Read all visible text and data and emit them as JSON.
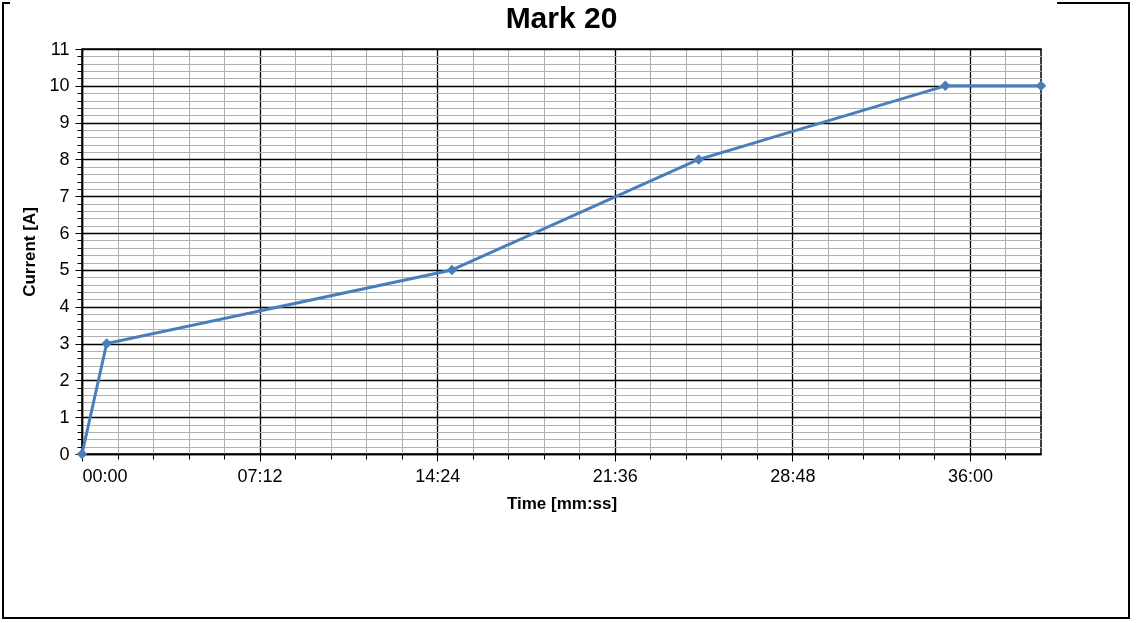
{
  "chart_data": {
    "type": "line",
    "title": "Mark 20",
    "xlabel": "Time [mm:ss]",
    "ylabel": "Current [A]",
    "x": [
      0,
      1,
      15,
      25,
      35,
      38.88
    ],
    "series": [
      {
        "color": "#4a7ebb",
        "values": [
          0,
          3,
          5,
          8,
          10,
          10
        ]
      }
    ],
    "xlim": [
      0,
      38.88
    ],
    "xticks": [
      {
        "value": 0,
        "label": "00:00"
      },
      {
        "value": 1.44,
        "label": null
      },
      {
        "value": 2.88,
        "label": null
      },
      {
        "value": 4.32,
        "label": null
      },
      {
        "value": 5.76,
        "label": null
      },
      {
        "value": 7.2,
        "label": "07:12"
      },
      {
        "value": 8.64,
        "label": null
      },
      {
        "value": 10.08,
        "label": null
      },
      {
        "value": 11.52,
        "label": null
      },
      {
        "value": 12.96,
        "label": null
      },
      {
        "value": 14.4,
        "label": "14:24"
      },
      {
        "value": 15.84,
        "label": null
      },
      {
        "value": 17.28,
        "label": null
      },
      {
        "value": 18.72,
        "label": null
      },
      {
        "value": 20.16,
        "label": null
      },
      {
        "value": 21.6,
        "label": "21:36"
      },
      {
        "value": 23.04,
        "label": null
      },
      {
        "value": 24.48,
        "label": null
      },
      {
        "value": 25.92,
        "label": null
      },
      {
        "value": 27.36,
        "label": null
      },
      {
        "value": 28.8,
        "label": "28:48"
      },
      {
        "value": 30.24,
        "label": null
      },
      {
        "value": 31.68,
        "label": null
      },
      {
        "value": 33.12,
        "label": null
      },
      {
        "value": 34.56,
        "label": null
      },
      {
        "value": 36,
        "label": "36:00"
      },
      {
        "value": 37.44,
        "label": null
      }
    ],
    "ylim": [
      0,
      11
    ],
    "yticks": [
      0,
      {
        "value": 0.2,
        "label": null
      },
      {
        "value": 0.4,
        "label": null
      },
      {
        "value": 0.6,
        "label": null
      },
      {
        "value": 0.8,
        "label": null
      },
      1,
      {
        "value": 1.2,
        "label": null
      },
      {
        "value": 1.4,
        "label": null
      },
      {
        "value": 1.6,
        "label": null
      },
      {
        "value": 1.8,
        "label": null
      },
      2,
      {
        "value": 2.2,
        "label": null
      },
      {
        "value": 2.4,
        "label": null
      },
      {
        "value": 2.6,
        "label": null
      },
      {
        "value": 2.8,
        "label": null
      },
      3,
      {
        "value": 3.2,
        "label": null
      },
      {
        "value": 3.4,
        "label": null
      },
      {
        "value": 3.6,
        "label": null
      },
      {
        "value": 3.8,
        "label": null
      },
      4,
      {
        "value": 4.2,
        "label": null
      },
      {
        "value": 4.4,
        "label": null
      },
      {
        "value": 4.6,
        "label": null
      },
      {
        "value": 4.8,
        "label": null
      },
      5,
      {
        "value": 5.2,
        "label": null
      },
      {
        "value": 5.4,
        "label": null
      },
      {
        "value": 5.6,
        "label": null
      },
      {
        "value": 5.8,
        "label": null
      },
      6,
      {
        "value": 6.2,
        "label": null
      },
      {
        "value": 6.4,
        "label": null
      },
      {
        "value": 6.6,
        "label": null
      },
      {
        "value": 6.8,
        "label": null
      },
      7,
      {
        "value": 7.2,
        "label": null
      },
      {
        "value": 7.4,
        "label": null
      },
      {
        "value": 7.6,
        "label": null
      },
      {
        "value": 7.8,
        "label": null
      },
      8,
      {
        "value": 8.2,
        "label": null
      },
      {
        "value": 8.4,
        "label": null
      },
      {
        "value": 8.6,
        "label": null
      },
      {
        "value": 8.8,
        "label": null
      },
      9,
      {
        "value": 9.2,
        "label": null
      },
      {
        "value": 9.4,
        "label": null
      },
      {
        "value": 9.6,
        "label": null
      },
      {
        "value": 9.8,
        "label": null
      },
      10,
      {
        "value": 10.2,
        "label": null
      },
      {
        "value": 10.4,
        "label": null
      },
      {
        "value": 10.6,
        "label": null
      },
      {
        "value": 10.8,
        "label": null
      },
      11
    ],
    "grid": true,
    "marker": "diamond",
    "line_style": "solid"
  }
}
